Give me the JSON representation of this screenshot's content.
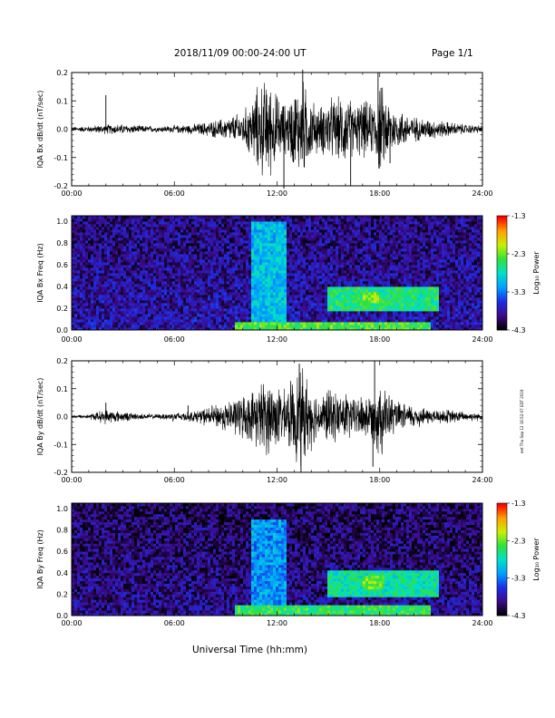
{
  "header": {
    "title": "2018/11/09  00:00-24:00 UT",
    "page": "Page 1/1"
  },
  "footer": {
    "x_axis_title": "Universal Time (hh:mm)",
    "side_note": "eet Thu Sep 12 16:52:07 EDT 2019"
  },
  "colorbar": {
    "label": "Log₁₀ Power",
    "ticks": [
      "-1.3",
      "-2.3",
      "-3.3",
      "-4.3"
    ],
    "stops": [
      "#000000",
      "#3d0a8c",
      "#1a2ee6",
      "#00a0ff",
      "#00e0c8",
      "#30e040",
      "#c8f000",
      "#ffa000",
      "#ff0000"
    ]
  },
  "chart_data": [
    {
      "type": "line",
      "name": "bx-waveform",
      "ylabel": "IQA Bx dB/dt (nT/sec)",
      "xlim": [
        0,
        24
      ],
      "ylim": [
        -0.2,
        0.2
      ],
      "x_ticks": [
        "00:00",
        "06:00",
        "12:00",
        "18:00",
        "24:00"
      ],
      "y_ticks": [
        "0.2",
        "0.1",
        "0.0",
        "-0.1",
        "-0.2"
      ],
      "envelope": {
        "hours": [
          0,
          1,
          2,
          3,
          4,
          5,
          6,
          7,
          8,
          9,
          10,
          10.5,
          11,
          11.5,
          12,
          12.5,
          13,
          13.5,
          14,
          14.5,
          15,
          15.5,
          16,
          16.5,
          17,
          17.5,
          18,
          18.5,
          19,
          19.5,
          20,
          21,
          22,
          23,
          24
        ],
        "amplitude": [
          0.01,
          0.012,
          0.02,
          0.02,
          0.015,
          0.012,
          0.015,
          0.02,
          0.03,
          0.045,
          0.07,
          0.12,
          0.19,
          0.2,
          0.14,
          0.1,
          0.16,
          0.2,
          0.12,
          0.09,
          0.13,
          0.12,
          0.15,
          0.1,
          0.12,
          0.1,
          0.19,
          0.12,
          0.08,
          0.07,
          0.05,
          0.04,
          0.03,
          0.02,
          0.015
        ]
      },
      "spikes": [
        {
          "x": 2.0,
          "y": 0.12
        },
        {
          "x": 12.4,
          "y": -0.21
        },
        {
          "x": 13.5,
          "y": 0.21
        },
        {
          "x": 16.3,
          "y": -0.2
        },
        {
          "x": 17.9,
          "y": 0.2
        },
        {
          "x": 18.6,
          "y": -0.12
        }
      ]
    },
    {
      "type": "heatmap",
      "name": "bx-spectrogram",
      "ylabel": "IQA Bx Freq (Hz)",
      "xlim": [
        0,
        24
      ],
      "ylim": [
        0,
        1.05
      ],
      "x_ticks": [
        "00:00",
        "06:00",
        "12:00",
        "18:00",
        "24:00"
      ],
      "y_ticks": [
        "1.0",
        "0.8",
        "0.6",
        "0.4",
        "0.2",
        "0.0"
      ],
      "features": [
        {
          "x": [
            10.5,
            12.5
          ],
          "y": [
            0,
            1.0
          ],
          "level": -3.0
        },
        {
          "x": [
            9.5,
            21
          ],
          "y": [
            0,
            0.08
          ],
          "level": -2.4
        },
        {
          "x": [
            15,
            21.5
          ],
          "y": [
            0.18,
            0.4
          ],
          "level": -2.6
        },
        {
          "x": [
            17,
            18
          ],
          "y": [
            0.25,
            0.35
          ],
          "level": -2.2
        }
      ],
      "background_level": -3.8
    },
    {
      "type": "line",
      "name": "by-waveform",
      "ylabel": "IQA By dB/dt (nT/sec)",
      "xlim": [
        0,
        24
      ],
      "ylim": [
        -0.2,
        0.2
      ],
      "x_ticks": [
        "00:00",
        "06:00",
        "12:00",
        "18:00",
        "24:00"
      ],
      "y_ticks": [
        "0.2",
        "0.1",
        "0.0",
        "-0.1",
        "-0.2"
      ],
      "envelope": {
        "hours": [
          0,
          1,
          2,
          3,
          4,
          5,
          6,
          7,
          8,
          9,
          10,
          10.5,
          11,
          11.5,
          12,
          12.5,
          13,
          13.5,
          14,
          14.5,
          15,
          15.5,
          16,
          16.5,
          17,
          17.5,
          18,
          18.5,
          19,
          19.5,
          20,
          21,
          22,
          23,
          24
        ],
        "amplitude": [
          0.006,
          0.01,
          0.03,
          0.02,
          0.012,
          0.01,
          0.02,
          0.02,
          0.04,
          0.06,
          0.09,
          0.1,
          0.14,
          0.16,
          0.13,
          0.1,
          0.18,
          0.2,
          0.13,
          0.08,
          0.12,
          0.09,
          0.11,
          0.07,
          0.1,
          0.09,
          0.17,
          0.1,
          0.06,
          0.05,
          0.05,
          0.03,
          0.03,
          0.02,
          0.015
        ]
      },
      "spikes": [
        {
          "x": 2.0,
          "y": 0.05
        },
        {
          "x": 6.8,
          "y": 0.04
        },
        {
          "x": 13.3,
          "y": 0.19
        },
        {
          "x": 13.4,
          "y": -0.2
        },
        {
          "x": 17.7,
          "y": 0.2
        },
        {
          "x": 17.6,
          "y": -0.18
        }
      ]
    },
    {
      "type": "heatmap",
      "name": "by-spectrogram",
      "ylabel": "IQA By Freq (Hz)",
      "xlim": [
        0,
        24
      ],
      "ylim": [
        0,
        1.05
      ],
      "x_ticks": [
        "00:00",
        "06:00",
        "12:00",
        "18:00",
        "24:00"
      ],
      "y_ticks": [
        "1.0",
        "0.8",
        "0.6",
        "0.4",
        "0.2",
        "0.0"
      ],
      "features": [
        {
          "x": [
            10.5,
            12.5
          ],
          "y": [
            0,
            0.9
          ],
          "level": -3.2
        },
        {
          "x": [
            9.5,
            21
          ],
          "y": [
            0,
            0.1
          ],
          "level": -2.5
        },
        {
          "x": [
            15,
            21.5
          ],
          "y": [
            0.18,
            0.42
          ],
          "level": -2.7
        },
        {
          "x": [
            17,
            18.2
          ],
          "y": [
            0.25,
            0.38
          ],
          "level": -2.3
        }
      ],
      "background_level": -3.9
    }
  ]
}
